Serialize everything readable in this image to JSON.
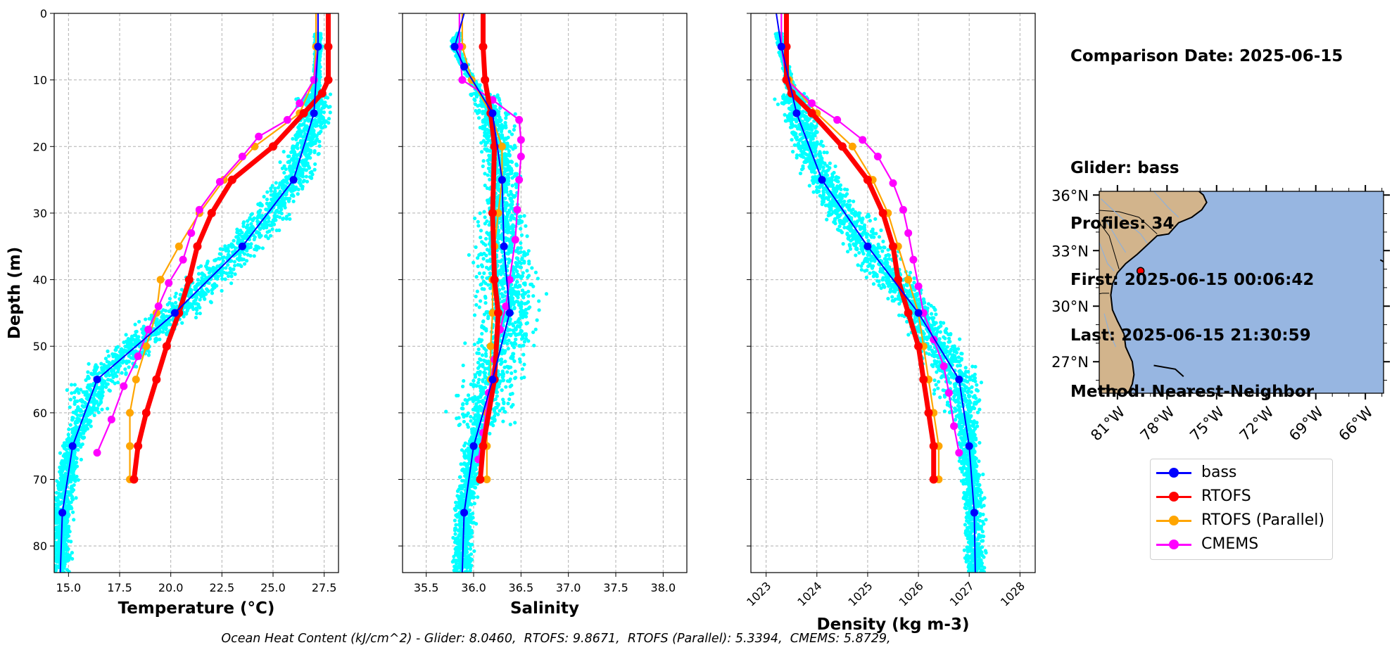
{
  "info": {
    "comparison_date": "Comparison Date: 2025-06-15",
    "glider": "Glider: bass",
    "profiles": "Profiles: 34",
    "first": "First: 2025-06-15 00:06:42",
    "last": "Last: 2025-06-15 21:30:59",
    "method": "Method: Nearest-Neighbor"
  },
  "footer": "Ocean Heat Content (kJ/cm^2) - Glider: 8.0460,  RTOFS: 9.8671,  RTOFS (Parallel): 5.3394,  CMEMS: 5.8729,",
  "legend": [
    {
      "name": "bass",
      "color": "#0000ff"
    },
    {
      "name": "RTOFS",
      "color": "#ff0000"
    },
    {
      "name": "RTOFS (Parallel)",
      "color": "#ffa500"
    },
    {
      "name": "CMEMS",
      "color": "#ff00ff"
    }
  ],
  "colors": {
    "glider_cloud": "#00ffff",
    "land": "#d2b48c",
    "ocean": "#97b6e1",
    "grid": "#b0b0b0"
  },
  "chart_data": [
    {
      "type": "line",
      "xlabel": "Temperature (°C)",
      "ylabel": "Depth (m)",
      "xlim": [
        14.3,
        28.2
      ],
      "ylim": [
        84,
        0
      ],
      "xticks": [
        "15.0",
        "17.5",
        "20.0",
        "22.5",
        "25.0",
        "27.5"
      ],
      "xtick_values": [
        15.0,
        17.5,
        20.0,
        22.5,
        25.0,
        27.5
      ],
      "yticks": [
        "0",
        "10",
        "20",
        "30",
        "40",
        "50",
        "60",
        "70",
        "80"
      ],
      "ytick_values": [
        0,
        10,
        20,
        30,
        40,
        50,
        60,
        70,
        80
      ],
      "grid": true,
      "series": [
        {
          "name": "bass",
          "points": [
            [
              27.2,
              0
            ],
            [
              27.2,
              5
            ],
            [
              27.0,
              15
            ],
            [
              26.0,
              25
            ],
            [
              23.5,
              35
            ],
            [
              20.2,
              45
            ],
            [
              16.4,
              55
            ],
            [
              15.2,
              65
            ],
            [
              14.7,
              75
            ],
            [
              14.6,
              84
            ]
          ]
        },
        {
          "name": "RTOFS",
          "points": [
            [
              27.7,
              0
            ],
            [
              27.7,
              5
            ],
            [
              27.7,
              10
            ],
            [
              27.4,
              12
            ],
            [
              26.5,
              15
            ],
            [
              25.0,
              20
            ],
            [
              23.0,
              25
            ],
            [
              22.0,
              30
            ],
            [
              21.3,
              35
            ],
            [
              20.9,
              40
            ],
            [
              20.4,
              45
            ],
            [
              19.8,
              50
            ],
            [
              19.3,
              55
            ],
            [
              18.8,
              60
            ],
            [
              18.4,
              65
            ],
            [
              18.2,
              70
            ]
          ]
        },
        {
          "name": "RTOFS (Parallel)",
          "points": [
            [
              27.1,
              0
            ],
            [
              27.1,
              5
            ],
            [
              27.0,
              10
            ],
            [
              26.3,
              15
            ],
            [
              24.1,
              20
            ],
            [
              22.6,
              25
            ],
            [
              21.4,
              30
            ],
            [
              20.4,
              35
            ],
            [
              19.5,
              40
            ],
            [
              19.3,
              45
            ],
            [
              18.8,
              50
            ],
            [
              18.3,
              55
            ],
            [
              18.0,
              60
            ],
            [
              18.0,
              65
            ],
            [
              18.0,
              70
            ]
          ]
        },
        {
          "name": "CMEMS",
          "points": [
            [
              27.2,
              0
            ],
            [
              27.2,
              5
            ],
            [
              27.0,
              10
            ],
            [
              26.3,
              13.5
            ],
            [
              25.7,
              16
            ],
            [
              24.3,
              18.5
            ],
            [
              23.5,
              21.5
            ],
            [
              22.4,
              25.3
            ],
            [
              21.4,
              29.5
            ],
            [
              21.0,
              33
            ],
            [
              20.6,
              37
            ],
            [
              19.9,
              40.5
            ],
            [
              19.4,
              44
            ],
            [
              18.9,
              47.5
            ],
            [
              18.4,
              51.5
            ],
            [
              17.7,
              56
            ],
            [
              17.1,
              61
            ],
            [
              16.4,
              66
            ]
          ]
        }
      ]
    },
    {
      "type": "line",
      "xlabel": "Salinity",
      "ylabel": "",
      "xlim": [
        35.25,
        38.25
      ],
      "ylim": [
        84,
        0
      ],
      "xticks": [
        "35.5",
        "36.0",
        "36.5",
        "37.0",
        "37.5",
        "38.0"
      ],
      "xtick_values": [
        35.5,
        36.0,
        36.5,
        37.0,
        37.5,
        38.0
      ],
      "yticks": [],
      "ytick_values": [
        0,
        10,
        20,
        30,
        40,
        50,
        60,
        70,
        80
      ],
      "grid": true,
      "series": [
        {
          "name": "bass",
          "points": [
            [
              35.9,
              0
            ],
            [
              35.8,
              5
            ],
            [
              35.9,
              8
            ],
            [
              36.2,
              15
            ],
            [
              36.3,
              25
            ],
            [
              36.32,
              35
            ],
            [
              36.38,
              45
            ],
            [
              36.2,
              55
            ],
            [
              36.0,
              65
            ],
            [
              35.9,
              75
            ],
            [
              35.88,
              84
            ]
          ]
        },
        {
          "name": "RTOFS",
          "points": [
            [
              36.1,
              0
            ],
            [
              36.1,
              5
            ],
            [
              36.12,
              10
            ],
            [
              36.18,
              15
            ],
            [
              36.22,
              20
            ],
            [
              36.2,
              30
            ],
            [
              36.22,
              40
            ],
            [
              36.26,
              45
            ],
            [
              36.22,
              55
            ],
            [
              36.1,
              65
            ],
            [
              36.07,
              70
            ]
          ]
        },
        {
          "name": "RTOFS (Parallel)",
          "points": [
            [
              35.88,
              0
            ],
            [
              35.88,
              5
            ],
            [
              35.98,
              10
            ],
            [
              36.18,
              15
            ],
            [
              36.3,
              20
            ],
            [
              36.3,
              25
            ],
            [
              36.26,
              30
            ],
            [
              36.22,
              35
            ],
            [
              36.2,
              40
            ],
            [
              36.2,
              45
            ],
            [
              36.18,
              50
            ],
            [
              36.18,
              55
            ],
            [
              36.14,
              60
            ],
            [
              36.14,
              65
            ],
            [
              36.14,
              70
            ]
          ]
        },
        {
          "name": "CMEMS",
          "points": [
            [
              35.85,
              0
            ],
            [
              35.85,
              5
            ],
            [
              35.88,
              10
            ],
            [
              36.2,
              13
            ],
            [
              36.48,
              16
            ],
            [
              36.5,
              19
            ],
            [
              36.5,
              21.5
            ],
            [
              36.48,
              25
            ],
            [
              36.46,
              29.5
            ],
            [
              36.44,
              34
            ],
            [
              36.38,
              40
            ],
            [
              36.34,
              44
            ],
            [
              36.28,
              47.5
            ],
            [
              36.22,
              52
            ],
            [
              36.16,
              57
            ],
            [
              36.1,
              63
            ],
            [
              36.05,
              67
            ]
          ]
        }
      ]
    },
    {
      "type": "line",
      "xlabel": "Density (kg m-3)",
      "ylabel": "",
      "xlim": [
        1022.7,
        1028.3
      ],
      "ylim": [
        84,
        0
      ],
      "xticks": [
        "1023",
        "1024",
        "1025",
        "1026",
        "1027",
        "1028"
      ],
      "xtick_values": [
        1023,
        1024,
        1025,
        1026,
        1027,
        1028
      ],
      "yticks": [],
      "ytick_values": [
        0,
        10,
        20,
        30,
        40,
        50,
        60,
        70,
        80
      ],
      "grid": true,
      "series": [
        {
          "name": "bass",
          "points": [
            [
              1023.2,
              0
            ],
            [
              1023.3,
              5
            ],
            [
              1023.6,
              15
            ],
            [
              1024.1,
              25
            ],
            [
              1025.0,
              35
            ],
            [
              1026.0,
              45
            ],
            [
              1026.8,
              55
            ],
            [
              1027.0,
              65
            ],
            [
              1027.1,
              75
            ],
            [
              1027.12,
              84
            ]
          ]
        },
        {
          "name": "RTOFS",
          "points": [
            [
              1023.4,
              0
            ],
            [
              1023.4,
              5
            ],
            [
              1023.4,
              10
            ],
            [
              1023.5,
              12
            ],
            [
              1023.9,
              15
            ],
            [
              1024.5,
              20
            ],
            [
              1025.0,
              25
            ],
            [
              1025.3,
              30
            ],
            [
              1025.5,
              35
            ],
            [
              1025.6,
              40
            ],
            [
              1025.8,
              45
            ],
            [
              1026.0,
              50
            ],
            [
              1026.1,
              55
            ],
            [
              1026.2,
              60
            ],
            [
              1026.3,
              65
            ],
            [
              1026.3,
              70
            ]
          ]
        },
        {
          "name": "RTOFS (Parallel)",
          "points": [
            [
              1023.4,
              0
            ],
            [
              1023.4,
              5
            ],
            [
              1023.45,
              10
            ],
            [
              1024.0,
              15
            ],
            [
              1024.7,
              20
            ],
            [
              1025.1,
              25
            ],
            [
              1025.4,
              30
            ],
            [
              1025.6,
              35
            ],
            [
              1025.8,
              40
            ],
            [
              1026.0,
              45
            ],
            [
              1026.1,
              50
            ],
            [
              1026.2,
              55
            ],
            [
              1026.3,
              60
            ],
            [
              1026.4,
              65
            ],
            [
              1026.4,
              70
            ]
          ]
        },
        {
          "name": "CMEMS",
          "points": [
            [
              1023.3,
              0
            ],
            [
              1023.3,
              5
            ],
            [
              1023.4,
              10
            ],
            [
              1023.9,
              13.5
            ],
            [
              1024.4,
              16
            ],
            [
              1024.9,
              19
            ],
            [
              1025.2,
              21.5
            ],
            [
              1025.5,
              25.5
            ],
            [
              1025.7,
              29.5
            ],
            [
              1025.8,
              33
            ],
            [
              1025.9,
              37
            ],
            [
              1026.0,
              41
            ],
            [
              1026.1,
              45
            ],
            [
              1026.3,
              49
            ],
            [
              1026.5,
              53
            ],
            [
              1026.6,
              57
            ],
            [
              1026.7,
              62
            ],
            [
              1026.8,
              66
            ]
          ]
        }
      ]
    }
  ],
  "map": {
    "lat_labels": [
      "36°N",
      "33°N",
      "30°N",
      "27°N"
    ],
    "lat_values": [
      36,
      33,
      30,
      27
    ],
    "lon_labels": [
      "81°W",
      "78°W",
      "75°W",
      "72°W",
      "69°W",
      "66°W"
    ],
    "lon_values": [
      -81,
      -78,
      -75,
      -72,
      -69,
      -66
    ],
    "lon_range": [
      -82.1,
      -64.9
    ],
    "lat_range": [
      25.3,
      36.2
    ],
    "rtofs_point": {
      "lon": -79.6,
      "lat": 31.9
    }
  }
}
